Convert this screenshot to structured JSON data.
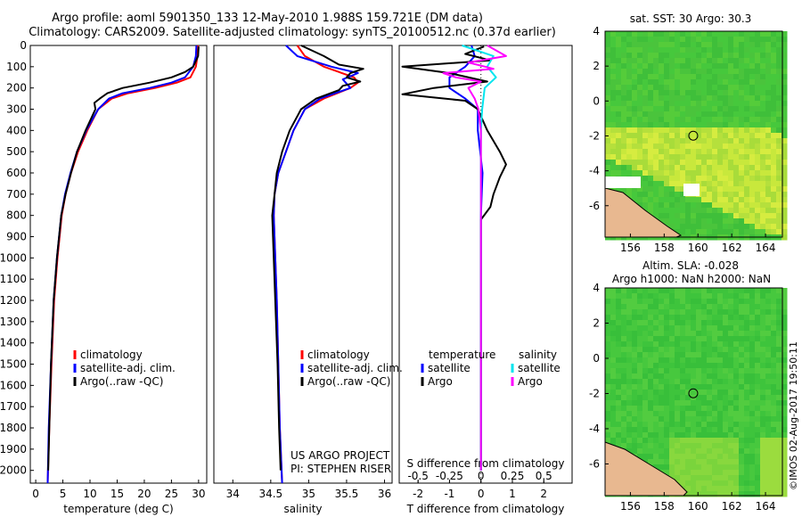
{
  "header": {
    "line1": "Argo profile: aoml 5901350_133 12-May-2010 1.988S 159.721E (DM data)",
    "line2": "Climatology: CARS2009. Satellite-adjusted climatology: synTS_20100512.nc (0.37d earlier)"
  },
  "colors": {
    "climatology": "#ff0000",
    "satellite": "#0000ff",
    "argo": "#000000",
    "salinity_satellite": "#00e5ee",
    "salinity_argo": "#ff00ff"
  },
  "credits": {
    "project": "US ARGO PROJECT",
    "pi": "PI: STEPHEN RISER",
    "watermark": "©IMOS 02-Aug-2017 19:50:11"
  },
  "chart_data": [
    {
      "type": "line",
      "name": "temperature-profile",
      "xlabel": "temperature (deg C)",
      "ylabel": "",
      "xlim": [
        -1,
        31.5
      ],
      "ylim": [
        2060,
        0
      ],
      "xticks": [
        0,
        5,
        10,
        15,
        20,
        25,
        30
      ],
      "yticks": [
        0,
        100,
        200,
        300,
        400,
        500,
        600,
        700,
        800,
        900,
        1000,
        1100,
        1200,
        1300,
        1400,
        1500,
        1600,
        1700,
        1800,
        1900,
        2000
      ],
      "legend": [
        "climatology",
        "satellite-adj. clim.",
        "Argo(..raw -QC)"
      ],
      "series": [
        {
          "name": "climatology",
          "y": [
            0,
            50,
            100,
            150,
            175,
            200,
            225,
            250,
            300,
            400,
            500,
            600,
            700,
            800,
            1000,
            1200,
            1500,
            1800,
            2060
          ],
          "x": [
            29.9,
            29.8,
            29.5,
            28.5,
            26,
            22,
            17,
            14,
            11.5,
            9.5,
            7.8,
            6.5,
            5.5,
            4.8,
            4.0,
            3.4,
            2.9,
            2.5,
            2.2
          ]
        },
        {
          "name": "satellite-adj. clim.",
          "y": [
            0,
            50,
            100,
            150,
            175,
            200,
            225,
            250,
            300,
            400,
            500,
            600,
            700,
            800,
            1000,
            1200,
            1500,
            1800,
            2060
          ],
          "x": [
            29.6,
            29.5,
            29.0,
            27.5,
            25,
            21,
            16,
            13.5,
            11.5,
            9.3,
            7.6,
            6.4,
            5.4,
            4.7,
            3.9,
            3.3,
            2.8,
            2.4,
            2.2
          ]
        },
        {
          "name": "Argo(..raw -QC)",
          "y": [
            5,
            50,
            100,
            125,
            150,
            175,
            200,
            225,
            250,
            270,
            300,
            400,
            500,
            600,
            700,
            800,
            1000,
            1200,
            1500,
            1800,
            2000
          ],
          "x": [
            30.0,
            29.9,
            29.0,
            27.5,
            25,
            21,
            16,
            13.2,
            11.8,
            10.8,
            11.0,
            9.2,
            7.6,
            6.5,
            5.5,
            4.7,
            3.9,
            3.3,
            2.8,
            2.5,
            2.3
          ]
        }
      ]
    },
    {
      "type": "line",
      "name": "salinity-profile",
      "xlabel": "salinity",
      "ylabel": "",
      "xlim": [
        33.75,
        36.1
      ],
      "ylim": [
        2060,
        0
      ],
      "xticks": [
        34,
        34.5,
        35,
        35.5,
        36
      ],
      "legend": [
        "climatology",
        "satellite-adj. clim.",
        "Argo(..raw -QC)"
      ],
      "series": [
        {
          "name": "climatology",
          "y": [
            0,
            50,
            100,
            150,
            175,
            200,
            250,
            300,
            400,
            500,
            600,
            700,
            800,
            1000,
            1200,
            1500,
            1800,
            2060
          ],
          "x": [
            34.85,
            34.95,
            35.2,
            35.6,
            35.65,
            35.55,
            35.2,
            34.95,
            34.8,
            34.7,
            34.6,
            34.55,
            34.54,
            34.56,
            34.58,
            34.6,
            34.62,
            34.65
          ]
        },
        {
          "name": "satellite-adj. clim.",
          "y": [
            0,
            50,
            100,
            130,
            160,
            200,
            250,
            300,
            400,
            500,
            600,
            700,
            800,
            1000,
            1200,
            1500,
            1800,
            2060
          ],
          "x": [
            34.7,
            34.85,
            35.3,
            35.65,
            35.45,
            35.55,
            35.15,
            34.95,
            34.8,
            34.7,
            34.6,
            34.55,
            34.54,
            34.56,
            34.58,
            34.6,
            34.62,
            34.65
          ]
        },
        {
          "name": "Argo(..raw -QC)",
          "y": [
            0,
            50,
            90,
            110,
            130,
            150,
            170,
            190,
            210,
            250,
            300,
            400,
            500,
            600,
            700,
            800,
            1000,
            1200,
            1500,
            1800,
            2000
          ],
          "x": [
            34.9,
            35.2,
            35.4,
            35.72,
            35.55,
            35.5,
            35.68,
            35.45,
            35.4,
            35.1,
            34.9,
            34.75,
            34.65,
            34.58,
            34.55,
            34.52,
            34.54,
            34.56,
            34.59,
            34.61,
            34.63
          ]
        }
      ]
    },
    {
      "type": "line",
      "name": "difference-profile",
      "xlabel": "T difference from climatology",
      "xlabel_top": "S difference from climatology",
      "ylim": [
        2060,
        0
      ],
      "xlim_T": [
        -2.6,
        2.9
      ],
      "xticks_T": [
        -2,
        -1,
        0,
        1,
        2
      ],
      "xlim_S": [
        -0.65,
        0.725
      ],
      "xticks_S": [
        -0.5,
        -0.25,
        0,
        0.25,
        0.5
      ],
      "xticklabels_S": [
        "-0.5",
        "-0.25",
        "0",
        "0.25",
        "0.5"
      ],
      "legend": {
        "temperature_header": "temperature",
        "salinity_header": "salinity",
        "entries": [
          "satellite",
          "Argo",
          "satellite",
          "Argo"
        ]
      },
      "series": [
        {
          "name": "temperature satellite",
          "axis": "T",
          "y": [
            0,
            50,
            100,
            150,
            200,
            250,
            300,
            400,
            600,
            800,
            1000,
            1500,
            2000
          ],
          "x": [
            -0.3,
            -0.2,
            -0.5,
            -1.0,
            -1.0,
            -0.5,
            -0.1,
            -0.1,
            0.05,
            0.0,
            0.0,
            0.0,
            0.0
          ]
        },
        {
          "name": "temperature Argo",
          "axis": "T",
          "y": [
            5,
            40,
            70,
            100,
            130,
            170,
            200,
            230,
            260,
            300,
            400,
            500,
            560,
            620,
            700,
            760,
            820,
            900,
            1000,
            1500,
            2000
          ],
          "x": [
            0.1,
            -0.5,
            0.3,
            -2.5,
            -1.0,
            0.2,
            -1.5,
            -2.5,
            -0.5,
            -0.1,
            0.2,
            0.6,
            0.8,
            0.6,
            0.4,
            0.3,
            0.0,
            0.0,
            0.0,
            0.0,
            0.0
          ]
        },
        {
          "name": "salinity satellite",
          "axis": "S",
          "y": [
            0,
            50,
            100,
            150,
            200,
            250,
            300,
            400,
            600,
            1000,
            1500,
            2000
          ],
          "x": [
            -0.15,
            0.1,
            0.05,
            0.12,
            0.03,
            0.02,
            0.01,
            0.0,
            0.0,
            0.0,
            0.0,
            0.0
          ]
        },
        {
          "name": "salinity Argo",
          "axis": "S",
          "y": [
            0,
            50,
            80,
            110,
            130,
            150,
            170,
            200,
            250,
            300,
            400,
            600,
            1000,
            1500,
            2000
          ],
          "x": [
            0.05,
            0.2,
            -0.1,
            0.1,
            -0.3,
            -0.2,
            0.0,
            -0.1,
            -0.05,
            -0.02,
            0.0,
            0.0,
            0.0,
            0.0,
            0.0
          ]
        }
      ]
    },
    {
      "type": "heatmap",
      "name": "sst-map",
      "title": "sat. SST: 30 Argo: 30.3",
      "xlim": [
        154.5,
        165
      ],
      "ylim": [
        -7.8,
        4
      ],
      "xticks": [
        156,
        158,
        160,
        162,
        164
      ],
      "yticks": [
        4,
        2,
        0,
        -2,
        -4,
        -6
      ],
      "marker": {
        "lon": 159.721,
        "lat": -1.988
      }
    },
    {
      "type": "heatmap",
      "name": "sla-map",
      "title": "Altim. SLA: -0.028",
      "subtitle": "Argo h1000: NaN h2000: NaN",
      "xlim": [
        154.5,
        165
      ],
      "ylim": [
        -7.8,
        4
      ],
      "xticks": [
        156,
        158,
        160,
        162,
        164
      ],
      "yticks": [
        4,
        2,
        0,
        -2,
        -4,
        -6
      ],
      "marker": {
        "lon": 159.721,
        "lat": -1.988
      }
    }
  ]
}
